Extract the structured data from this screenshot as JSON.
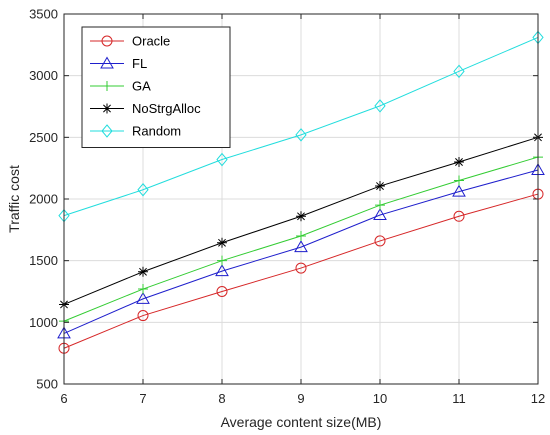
{
  "chart_data": {
    "type": "line",
    "xlabel": "Average content size(MB)",
    "ylabel": "Traffic cost",
    "xlim": [
      6,
      12
    ],
    "ylim": [
      500,
      3500
    ],
    "x_ticks": [
      6,
      7,
      8,
      9,
      10,
      11,
      12
    ],
    "y_ticks": [
      500,
      1000,
      1500,
      2000,
      2500,
      3000,
      3500
    ],
    "grid": true,
    "legend_position": "top-left",
    "x": [
      6,
      7,
      8,
      9,
      10,
      11,
      12
    ],
    "series": [
      {
        "name": "Oracle",
        "color": "#d62728",
        "marker": "circle",
        "values": [
          790,
          1055,
          1250,
          1440,
          1660,
          1860,
          2040
        ]
      },
      {
        "name": "FL",
        "color": "#1f1fcc",
        "marker": "triangle",
        "values": [
          910,
          1190,
          1415,
          1610,
          1870,
          2060,
          2235
        ]
      },
      {
        "name": "GA",
        "color": "#33cc33",
        "marker": "plus",
        "values": [
          1010,
          1270,
          1500,
          1700,
          1950,
          2150,
          2340
        ]
      },
      {
        "name": "NoStrgAlloc",
        "color": "#000000",
        "marker": "asterisk",
        "values": [
          1145,
          1410,
          1645,
          1860,
          2105,
          2300,
          2500
        ]
      },
      {
        "name": "Random",
        "color": "#22dddd",
        "marker": "diamond",
        "values": [
          1865,
          2075,
          2320,
          2520,
          2755,
          3035,
          3310
        ]
      }
    ]
  }
}
